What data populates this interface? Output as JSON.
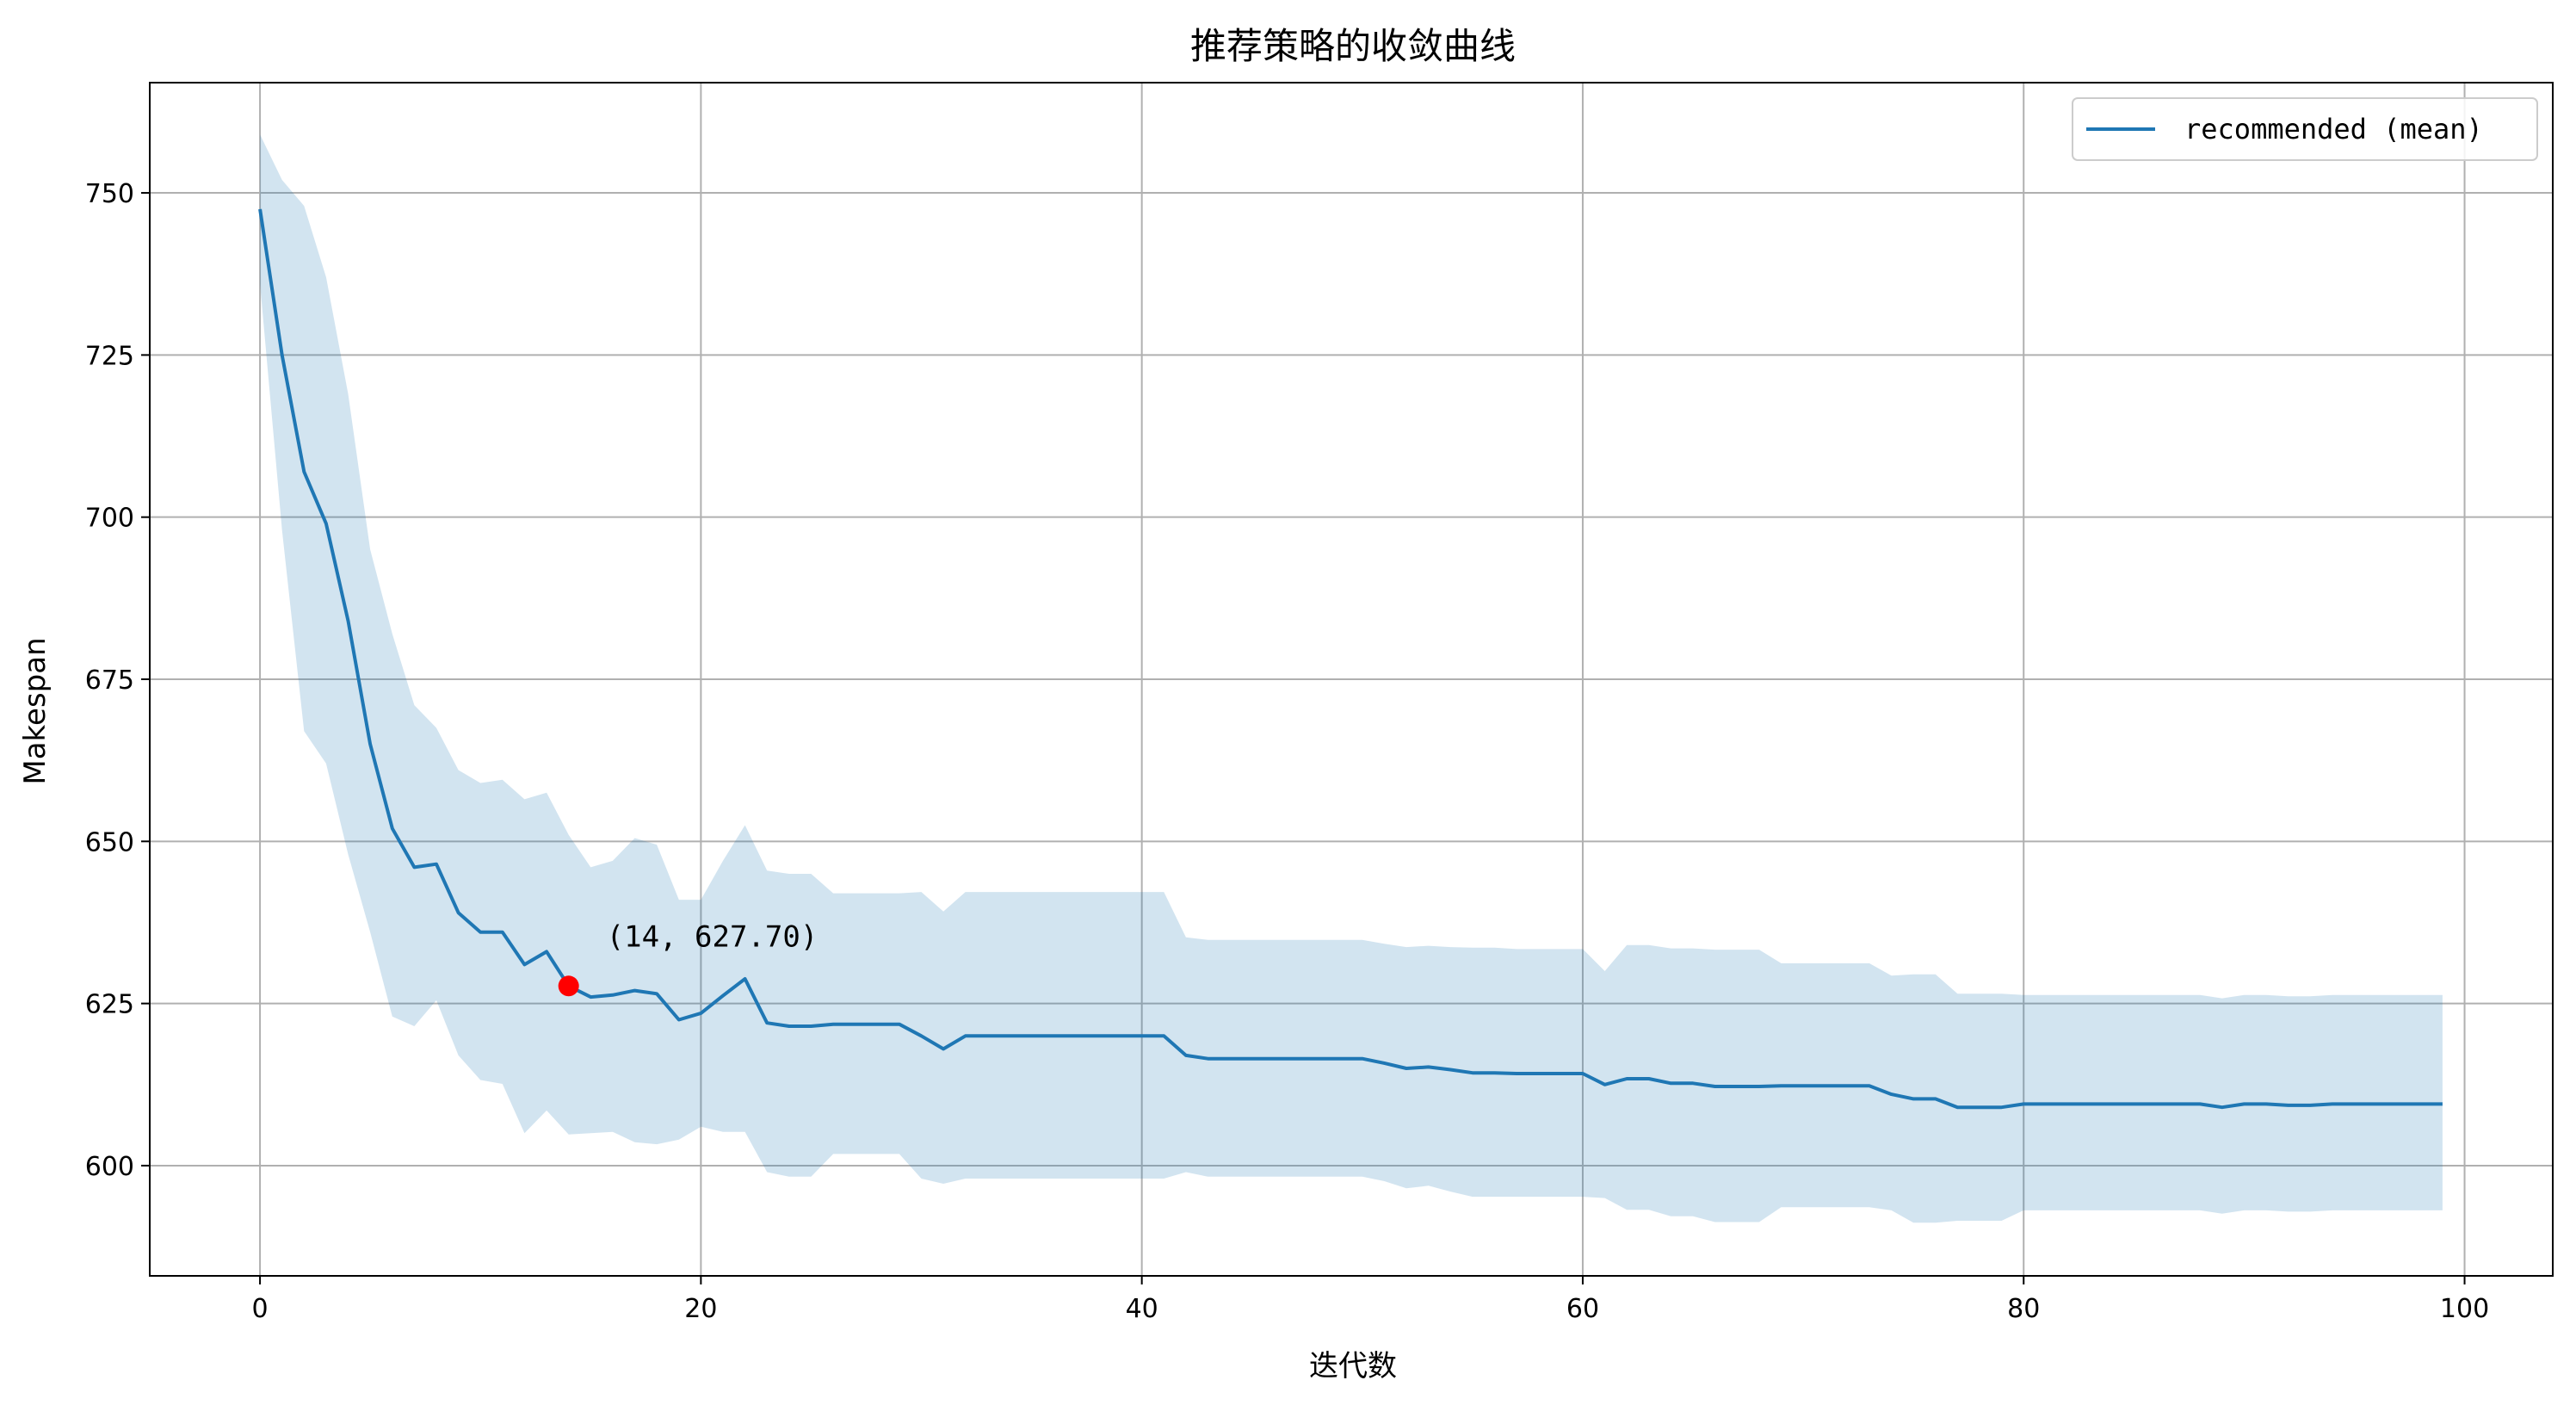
{
  "chart_data": {
    "type": "line",
    "title": "推荐策略的收敛曲线",
    "xlabel": "迭代数",
    "ylabel": "Makespan",
    "xlim": [
      -5,
      104
    ],
    "ylim": [
      583,
      767
    ],
    "x_ticks": [
      0,
      20,
      40,
      60,
      80,
      100
    ],
    "y_ticks": [
      600,
      625,
      650,
      675,
      700,
      725,
      750
    ],
    "x_tick_labels": [
      "0",
      "20",
      "40",
      "60",
      "80",
      "100"
    ],
    "y_tick_labels": [
      "600",
      "625",
      "650",
      "675",
      "700",
      "725",
      "750"
    ],
    "grid": true,
    "legend": {
      "position": "top-right",
      "entries": [
        "recommended (mean)"
      ]
    },
    "colors": {
      "line": "#1f77b4",
      "band": "#1f77b4",
      "band_opacity": 0.2,
      "marker": "#ff0000",
      "grid": "#b0b0b0"
    },
    "series": [
      {
        "name": "recommended (mean)",
        "x": [
          0,
          1,
          2,
          3,
          4,
          5,
          6,
          7,
          8,
          9,
          10,
          11,
          12,
          13,
          14,
          15,
          16,
          17,
          18,
          19,
          20,
          21,
          22,
          23,
          24,
          25,
          26,
          27,
          28,
          29,
          30,
          31,
          32,
          33,
          34,
          35,
          36,
          37,
          38,
          39,
          40,
          41,
          42,
          43,
          44,
          45,
          46,
          47,
          48,
          49,
          50,
          51,
          52,
          53,
          54,
          55,
          56,
          57,
          58,
          59,
          60,
          61,
          62,
          63,
          64,
          65,
          66,
          67,
          68,
          69,
          70,
          71,
          72,
          73,
          74,
          75,
          76,
          77,
          78,
          79,
          80,
          81,
          82,
          83,
          84,
          85,
          86,
          87,
          88,
          89,
          90,
          91,
          92,
          93,
          94,
          95,
          96,
          97,
          98,
          99
        ],
        "mean": [
          747.5,
          725,
          707,
          699,
          684,
          665,
          652,
          646,
          646.5,
          639,
          636,
          636,
          631,
          633,
          627.7,
          626,
          626.3,
          627,
          626.5,
          622.5,
          623.5,
          626.2,
          628.8,
          622,
          621.5,
          621.5,
          621.8,
          621.8,
          621.8,
          621.8,
          620,
          618,
          620,
          620,
          620,
          620,
          620,
          620,
          620,
          620,
          620,
          620,
          617,
          616.5,
          616.5,
          616.5,
          616.5,
          616.5,
          616.5,
          616.5,
          616.5,
          615.8,
          615,
          615.2,
          614.8,
          614.3,
          614.3,
          614.2,
          614.2,
          614.2,
          614.2,
          612.5,
          613.4,
          613.4,
          612.7,
          612.7,
          612.2,
          612.2,
          612.2,
          612.3,
          612.3,
          612.3,
          612.3,
          612.3,
          611,
          610.3,
          610.3,
          609,
          609,
          609,
          609.5,
          609.5,
          609.5,
          609.5,
          609.5,
          609.5,
          609.5,
          609.5,
          609.5,
          609,
          609.5,
          609.5,
          609.3,
          609.3,
          609.5,
          609.5,
          609.5,
          609.5,
          609.5,
          609.5
        ],
        "upper": [
          759,
          752,
          748,
          737,
          719,
          695,
          682,
          671,
          667.5,
          661,
          659,
          659.5,
          656.5,
          657.5,
          651,
          646,
          647,
          650.5,
          649.5,
          641,
          641,
          647,
          652.5,
          645.5,
          645,
          645,
          642,
          642,
          642,
          642,
          642.2,
          639.2,
          642.2,
          642.2,
          642.2,
          642.2,
          642.2,
          642.2,
          642.2,
          642.2,
          642.2,
          642.2,
          635.2,
          634.8,
          634.8,
          634.8,
          634.8,
          634.8,
          634.8,
          634.8,
          634.8,
          634.2,
          633.7,
          633.9,
          633.7,
          633.6,
          633.6,
          633.4,
          633.4,
          633.4,
          633.4,
          630,
          634,
          634,
          633.5,
          633.5,
          633.3,
          633.3,
          633.3,
          631.2,
          631.2,
          631.2,
          631.2,
          631.2,
          629.3,
          629.5,
          629.5,
          626.5,
          626.5,
          626.5,
          626.3,
          626.3,
          626.3,
          626.3,
          626.3,
          626.3,
          626.3,
          626.3,
          626.3,
          625.8,
          626.3,
          626.3,
          626.1,
          626.1,
          626.3,
          626.3,
          626.3,
          626.3,
          626.3,
          626.3
        ],
        "lower": [
          736,
          698,
          667,
          662,
          648,
          636,
          623,
          621.5,
          625.5,
          617,
          613.2,
          612.6,
          605,
          608.5,
          604.8,
          605,
          605.2,
          603.6,
          603.3,
          604,
          606,
          605.2,
          605.2,
          599,
          598.3,
          598.3,
          601.8,
          601.8,
          601.8,
          601.8,
          598,
          597.2,
          598,
          598,
          598,
          598,
          598,
          598,
          598,
          598,
          598,
          598,
          599,
          598.3,
          598.3,
          598.3,
          598.3,
          598.3,
          598.3,
          598.3,
          598.3,
          597.6,
          596.5,
          596.9,
          596,
          595.2,
          595.2,
          595.2,
          595.2,
          595.2,
          595.2,
          595,
          593.2,
          593.2,
          592.2,
          592.2,
          591.3,
          591.3,
          591.3,
          593.6,
          593.6,
          593.6,
          593.6,
          593.6,
          593.1,
          591.2,
          591.2,
          591.5,
          591.5,
          591.5,
          593.1,
          593.1,
          593.1,
          593.1,
          593.1,
          593.1,
          593.1,
          593.1,
          593.1,
          592.6,
          593.1,
          593.1,
          592.9,
          592.9,
          593.1,
          593.1,
          593.1,
          593.1,
          593.1,
          593.1
        ]
      }
    ],
    "annotation": {
      "x": 14,
      "y": 627.7,
      "label": "(14, 627.70)"
    }
  }
}
